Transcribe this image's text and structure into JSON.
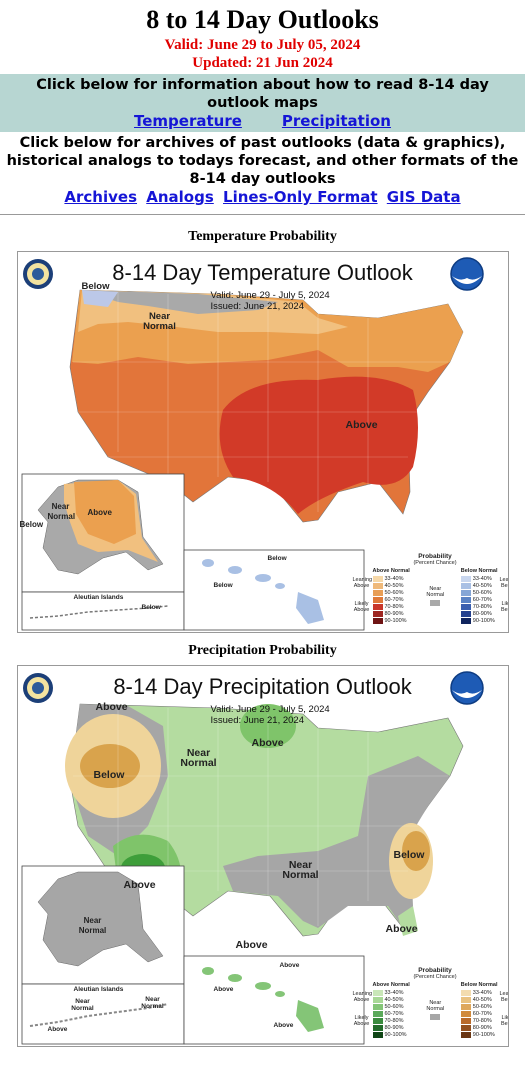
{
  "page": {
    "title": "8 to 14 Day Outlooks",
    "valid": "Valid: June 29 to July 05, 2024",
    "updated": "Updated: 21 Jun 2024"
  },
  "info": {
    "text": "Click below for information about how to read 8-14 day outlook maps",
    "links": [
      "Temperature",
      "Precipitation"
    ]
  },
  "archives": {
    "text": "Click below for archives of past outlooks (data & graphics), historical analogs to todays forecast, and other formats of the 8-14 day outlooks",
    "links": [
      "Archives",
      "Analogs",
      "Lines-Only Format",
      "GIS Data"
    ]
  },
  "temperature": {
    "section_title": "Temperature Probability",
    "map_title": "8-14 Day Temperature Outlook",
    "valid": "Valid:  June 29 - July 5, 2024",
    "issued": "Issued:  June 21, 2024",
    "labels": {
      "below_nw": "Below",
      "near_normal": "Near Normal",
      "above": "Above",
      "ak_near": "Near Normal",
      "ak_above": "Above",
      "ak_below": "Below",
      "aleutian": "Aleutian Islands",
      "aleutian_below": "Below",
      "hi_below1": "Below",
      "hi_below2": "Below"
    },
    "colors": {
      "near": "#a9a9a9",
      "above1": "#f1c07f",
      "above2": "#eba04f",
      "above3": "#e2753a",
      "above4": "#d23a28",
      "below": "#bcc8e8"
    }
  },
  "precipitation": {
    "section_title": "Precipitation Probability",
    "map_title": "8-14 Day Precipitation Outlook",
    "valid": "Valid:  June 29 - July 5, 2024",
    "issued": "Issued:  June 21, 2024",
    "labels": {
      "above_nw": "Above",
      "below": "Below",
      "near_normal": "Near Normal",
      "above_n": "Above",
      "above_sw": "Above",
      "near_normal_s": "Near Normal",
      "below_se": "Below",
      "above_fl": "Above",
      "above_s": "Above",
      "ak_near": "Near Normal",
      "aleutian": "Aleutian Islands",
      "aleutian_near1": "Near Normal",
      "aleutian_near2": "Near Normal",
      "aleutian_above": "Above",
      "hi_above1": "Above",
      "hi_above2": "Above",
      "hi_above3": "Above"
    },
    "colors": {
      "near": "#a6a6a6",
      "above1": "#b4dca0",
      "above2": "#7fc46a",
      "above3": "#3e9e3a",
      "below1": "#efd49a",
      "below2": "#d9a34c"
    }
  },
  "legend": {
    "title": "Probability",
    "subtitle": "(Percent Chance)",
    "temp_left_head": "Above Normal",
    "temp_right_head": "Below Normal",
    "temp_leaning_left": "Leaning Above",
    "temp_likely_left": "Likely Above",
    "temp_leaning_right": "Leaning Below",
    "temp_likely_right": "Likely Below",
    "near": "Near Normal",
    "pct": [
      "33-40%",
      "40-50%",
      "50-60%",
      "60-70%",
      "70-80%",
      "80-90%",
      "90-100%"
    ],
    "temp_above_colors": [
      "#f6d8a8",
      "#efb97a",
      "#e89e56",
      "#df7a3a",
      "#c8372a",
      "#9e2621",
      "#6e1414"
    ],
    "temp_below_colors": [
      "#c8d6ee",
      "#a9c0e4",
      "#85a6d6",
      "#5b83c4",
      "#3b5fae",
      "#24418f",
      "#10245e"
    ],
    "precip_above_colors": [
      "#c9e7b8",
      "#a8d896",
      "#84c577",
      "#5aa95a",
      "#3a8b3e",
      "#226b2a",
      "#0f4516"
    ],
    "precip_below_colors": [
      "#f3dcaf",
      "#e9c281",
      "#dea75c",
      "#d18a3c",
      "#b96a2a",
      "#93501e",
      "#6a3613"
    ],
    "precip_leaning_left": "Leaning Above",
    "precip_likely_left": "Likely Above",
    "precip_leaning_right": "Leaning Below",
    "precip_likely_right": "Likely Below"
  }
}
